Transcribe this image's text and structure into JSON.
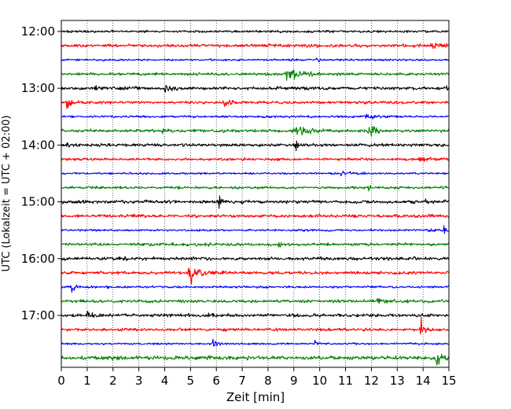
{
  "chart_data": {
    "type": "line",
    "title": "",
    "xlabel": "Zeit  [min]",
    "ylabel": "UTC (Lokalzeit = UTC + 02:00)",
    "xlim": [
      0,
      15
    ],
    "x_ticks": [
      "0",
      "1",
      "2",
      "3",
      "4",
      "5",
      "6",
      "7",
      "8",
      "9",
      "10",
      "11",
      "12",
      "13",
      "14",
      "15"
    ],
    "y_tick_labels": [
      "12:00",
      "13:00",
      "14:00",
      "15:00",
      "16:00",
      "17:00"
    ],
    "grid": "vertical dotted at each minute",
    "trace_start_utc": [
      "12:00",
      "12:15",
      "12:30",
      "12:45",
      "13:00",
      "13:15",
      "13:30",
      "13:45",
      "14:00",
      "14:15",
      "14:30",
      "14:45",
      "15:00",
      "15:15",
      "15:30",
      "15:45",
      "16:00",
      "16:15",
      "16:30",
      "16:45",
      "17:00",
      "17:15",
      "17:30",
      "17:45"
    ],
    "trace_colors": [
      "#000000",
      "#ff0000",
      "#0000ff",
      "#008000"
    ],
    "noise_amplitude": [
      1.2,
      1.6,
      1.0,
      1.3,
      1.6,
      1.4,
      1.1,
      1.5,
      1.5,
      1.3,
      1.0,
      1.3,
      1.6,
      1.5,
      1.0,
      1.4,
      1.6,
      1.5,
      1.1,
      1.5,
      1.6,
      1.5,
      1.0,
      1.9
    ],
    "events": [
      {
        "trace": 0,
        "events": [
          {
            "t": 12.0,
            "a": 0.8
          }
        ]
      },
      {
        "trace": 1,
        "events": [
          {
            "t": 14.3,
            "a": 3.2,
            "dur": 0.9
          }
        ]
      },
      {
        "trace": 2,
        "events": [
          {
            "t": 9.9,
            "a": 3.0,
            "dur": 0.15
          },
          {
            "t": 6.1,
            "a": 0.8
          }
        ]
      },
      {
        "trace": 3,
        "events": [
          {
            "t": 8.7,
            "a": 6.0,
            "dur": 1.3
          },
          {
            "t": 7.5,
            "a": 1.5,
            "dur": 0.8
          },
          {
            "t": 5.8,
            "a": 3.0,
            "dur": 0.1
          }
        ]
      },
      {
        "trace": 4,
        "events": [
          {
            "t": 4.0,
            "a": 5.0,
            "dur": 0.6
          },
          {
            "t": 1.3,
            "a": 2.5,
            "dur": 0.2
          },
          {
            "t": 14.8,
            "a": 3.0,
            "dur": 0.3
          }
        ]
      },
      {
        "trace": 5,
        "events": [
          {
            "t": 0.2,
            "a": 6.0,
            "dur": 0.4
          },
          {
            "t": 6.3,
            "a": 8.0,
            "dur": 0.3
          }
        ]
      },
      {
        "trace": 6,
        "events": [
          {
            "t": 11.8,
            "a": 3.2,
            "dur": 0.7
          }
        ]
      },
      {
        "trace": 7,
        "events": [
          {
            "t": 9.0,
            "a": 6.5,
            "dur": 1.0
          },
          {
            "t": 11.9,
            "a": 7.0,
            "dur": 0.4
          },
          {
            "t": 3.9,
            "a": 2.0,
            "dur": 0.4
          }
        ]
      },
      {
        "trace": 8,
        "events": [
          {
            "t": 0.2,
            "a": 3.0,
            "dur": 0.3
          },
          {
            "t": 9.05,
            "a": 11.0,
            "dur": 0.15
          }
        ]
      },
      {
        "trace": 9,
        "events": [
          {
            "t": 13.8,
            "a": 3.0,
            "dur": 0.6
          }
        ]
      },
      {
        "trace": 10,
        "events": [
          {
            "t": 10.8,
            "a": 2.5,
            "dur": 0.7
          }
        ]
      },
      {
        "trace": 11,
        "events": [
          {
            "t": 11.9,
            "a": 3.0,
            "dur": 0.1
          },
          {
            "t": 1.0,
            "a": 1.2,
            "dur": 0.3
          }
        ]
      },
      {
        "trace": 12,
        "events": [
          {
            "t": 6.1,
            "a": 12.0,
            "dur": 0.15
          },
          {
            "t": 14.1,
            "a": 5.0,
            "dur": 0.15
          }
        ]
      },
      {
        "trace": 13,
        "events": [
          {
            "t": 10.0,
            "a": 0.8
          }
        ]
      },
      {
        "trace": 14,
        "events": [
          {
            "t": 14.8,
            "a": 4.0,
            "dur": 0.3
          },
          {
            "t": 14.2,
            "a": 2.0,
            "dur": 0.3
          }
        ]
      },
      {
        "trace": 15,
        "events": [
          {
            "t": 5.7,
            "a": 3.0,
            "dur": 0.15
          },
          {
            "t": 8.4,
            "a": 3.5,
            "dur": 0.15
          }
        ]
      },
      {
        "trace": 16,
        "events": [
          {
            "t": 2.3,
            "a": 1.5,
            "dur": 0.4
          }
        ]
      },
      {
        "trace": 17,
        "events": [
          {
            "t": 4.9,
            "a": 18.0,
            "dur": 0.5
          }
        ]
      },
      {
        "trace": 18,
        "events": [
          {
            "t": 0.4,
            "a": 8.0,
            "dur": 0.2
          },
          {
            "t": 1.8,
            "a": 1.2,
            "dur": 0.3
          }
        ]
      },
      {
        "trace": 19,
        "events": [
          {
            "t": 12.2,
            "a": 3.0,
            "dur": 0.7
          }
        ]
      },
      {
        "trace": 20,
        "events": [
          {
            "t": 1.0,
            "a": 4.5,
            "dur": 0.3
          },
          {
            "t": 5.7,
            "a": 1.2,
            "dur": 0.2
          }
        ]
      },
      {
        "trace": 21,
        "events": [
          {
            "t": 13.9,
            "a": 14.0,
            "dur": 0.2
          }
        ]
      },
      {
        "trace": 22,
        "events": [
          {
            "t": 5.85,
            "a": 9.0,
            "dur": 0.2
          },
          {
            "t": 9.8,
            "a": 4.0,
            "dur": 0.2
          }
        ]
      },
      {
        "trace": 23,
        "events": [
          {
            "t": 14.5,
            "a": 6.0,
            "dur": 0.5
          },
          {
            "t": 5.7,
            "a": 2.0,
            "dur": 0.2
          }
        ]
      }
    ]
  }
}
